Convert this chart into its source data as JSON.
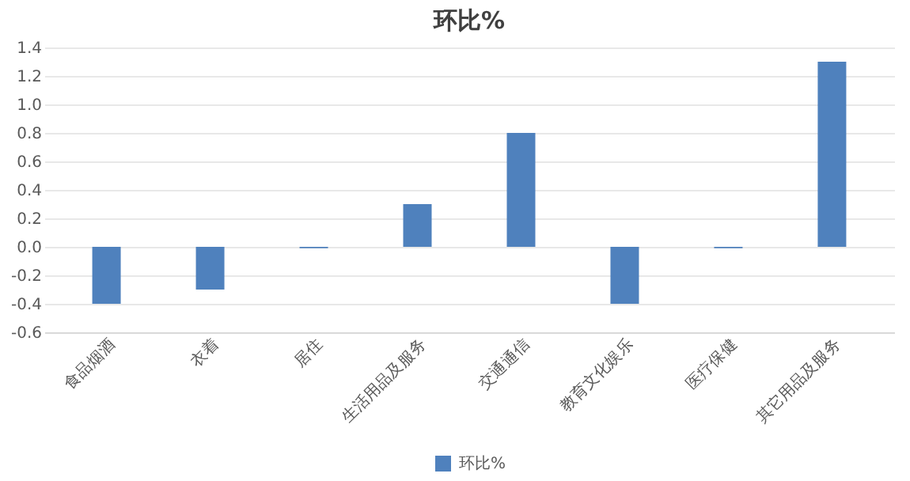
{
  "chart_data": {
    "type": "bar",
    "title": "环比%",
    "categories": [
      "食品烟酒",
      "衣着",
      "居住",
      "生活用品及服务",
      "交通通信",
      "教育文化娱乐",
      "医疗保健",
      "其它用品及服务"
    ],
    "series": [
      {
        "name": "环比%",
        "color": "#4f81bd",
        "values": [
          -0.4,
          -0.3,
          -0.01,
          0.3,
          0.8,
          -0.4,
          -0.01,
          1.3
        ]
      }
    ],
    "ylim": [
      -0.6,
      1.4
    ],
    "yticks": [
      {
        "value": -0.6,
        "label": "-0.6"
      },
      {
        "value": -0.4,
        "label": "-0.4"
      },
      {
        "value": -0.2,
        "label": "-0.2"
      },
      {
        "value": 0,
        "label": "0.0"
      },
      {
        "value": 0.2,
        "label": "0.2"
      },
      {
        "value": 0.4,
        "label": "0.4"
      },
      {
        "value": 0.6,
        "label": "0.6"
      },
      {
        "value": 0.8,
        "label": "0.8"
      },
      {
        "value": 1,
        "label": "1.0"
      },
      {
        "value": 1.2,
        "label": "1.2"
      },
      {
        "value": 1.4,
        "label": "1.4"
      }
    ],
    "grid": "y",
    "legend": "bottom"
  }
}
